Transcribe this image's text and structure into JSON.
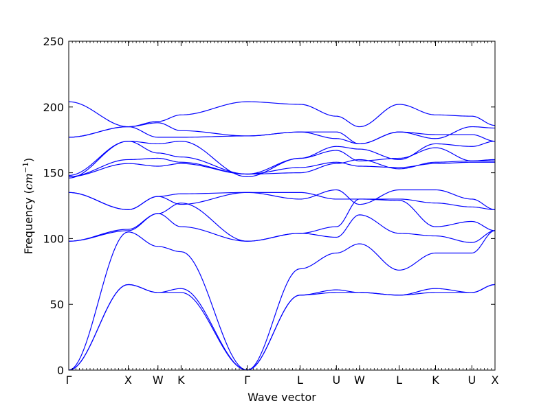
{
  "chart_data": {
    "type": "line",
    "title": "",
    "xlabel": "Wave vector",
    "ylabel_main": "Frequency (",
    "ylabel_unit_base": "cm",
    "ylabel_unit_exp": "−1",
    "ylabel_close": ")",
    "ylim": [
      0,
      250
    ],
    "yticks": [
      0,
      50,
      100,
      150,
      200,
      250
    ],
    "grid": false,
    "legend": "none",
    "line_color": "#0000ff",
    "x": [
      0,
      0.9,
      1.35,
      1.7,
      2.7,
      3.5,
      4.05,
      4.4,
      5.0,
      5.55,
      6.1,
      6.45
    ],
    "xlim": [
      0,
      6.45
    ],
    "x_tick_labels": [
      "Γ",
      "X",
      "W",
      "K",
      "Γ",
      "L",
      "U",
      "W",
      "L",
      "K",
      "U",
      "X"
    ],
    "series": [
      {
        "values": [
          0,
          65,
          59,
          59,
          0,
          57,
          59,
          59,
          57,
          59,
          59,
          65
        ]
      },
      {
        "values": [
          0,
          65,
          59,
          62,
          0,
          57,
          61,
          59,
          57,
          62,
          59,
          65
        ]
      },
      {
        "values": [
          0,
          105,
          94,
          90,
          0,
          77,
          89,
          96,
          76,
          89,
          89,
          106
        ]
      },
      {
        "values": [
          98,
          106,
          119,
          127,
          98,
          104,
          101,
          118,
          104,
          102,
          97,
          106
        ]
      },
      {
        "values": [
          98,
          107,
          119,
          109,
          98,
          104,
          109,
          130,
          129,
          109,
          113,
          106
        ]
      },
      {
        "values": [
          135,
          122,
          132,
          126,
          135,
          135,
          130,
          130,
          130,
          127,
          124,
          122
        ]
      },
      {
        "values": [
          135,
          122,
          132,
          134,
          135,
          130,
          137,
          126,
          137,
          137,
          130,
          122
        ]
      },
      {
        "values": [
          147,
          157,
          155,
          157,
          149,
          154,
          158,
          155,
          154,
          157,
          158,
          158
        ]
      },
      {
        "values": [
          147,
          160,
          161,
          158,
          149,
          150,
          157,
          160,
          153,
          158,
          159,
          159
        ]
      },
      {
        "values": [
          148,
          174,
          165,
          162,
          149,
          161,
          167,
          159,
          161,
          169,
          159,
          160
        ]
      },
      {
        "values": [
          146,
          174,
          172,
          174,
          147,
          161,
          170,
          168,
          160,
          172,
          170,
          174
        ]
      },
      {
        "values": [
          177,
          185,
          177,
          177,
          178,
          181,
          181,
          172,
          181,
          179,
          179,
          174
        ]
      },
      {
        "values": [
          177,
          185,
          188,
          182,
          178,
          181,
          176,
          172,
          181,
          176,
          185,
          184
        ]
      },
      {
        "values": [
          204,
          185,
          189,
          194,
          204,
          202,
          193,
          185,
          202,
          194,
          193,
          186
        ]
      }
    ]
  }
}
